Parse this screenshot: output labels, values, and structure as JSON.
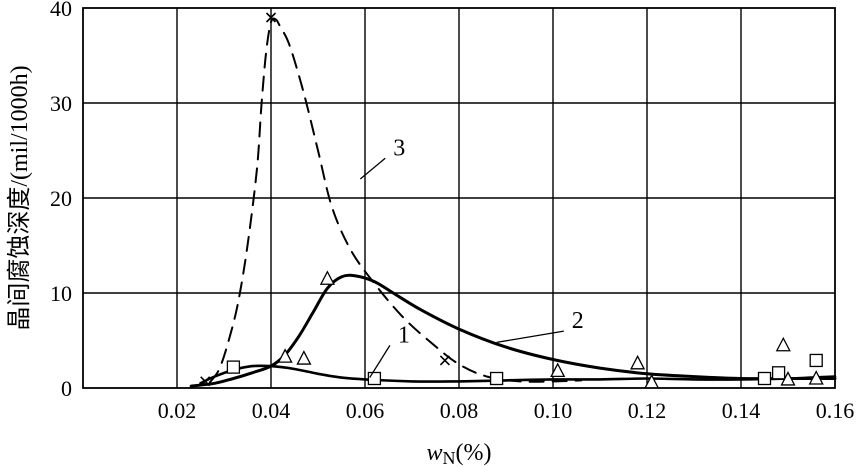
{
  "chart_data": {
    "type": "line",
    "title": "",
    "xlabel_var": "w",
    "xlabel_sub": "N",
    "xlabel_unit": "(%)",
    "ylabel": "晶间腐蚀深度/(mil/1000h)",
    "xlim": [
      0,
      0.16
    ],
    "ylim": [
      0,
      40
    ],
    "grid": true,
    "x_ticks": [
      0.02,
      0.04,
      0.06,
      0.08,
      0.1,
      0.12,
      0.14,
      0.16
    ],
    "x_tick_labels": [
      "0.02",
      "0.04",
      "0.06",
      "0.08",
      "0.10",
      "0.12",
      "0.14",
      "0.16"
    ],
    "y_ticks": [
      0,
      10,
      20,
      30,
      40
    ],
    "y_tick_labels": [
      "0",
      "10",
      "20",
      "30",
      "40"
    ],
    "series": [
      {
        "name": "1",
        "style": "solid",
        "stroke_color": "#000000",
        "marker": "square",
        "curve": [
          [
            0.025,
            0.5
          ],
          [
            0.028,
            1.2
          ],
          [
            0.032,
            1.9
          ],
          [
            0.036,
            2.3
          ],
          [
            0.04,
            2.3
          ],
          [
            0.045,
            2.0
          ],
          [
            0.05,
            1.5
          ],
          [
            0.055,
            1.1
          ],
          [
            0.06,
            0.9
          ],
          [
            0.07,
            0.7
          ],
          [
            0.08,
            0.7
          ],
          [
            0.09,
            0.8
          ],
          [
            0.1,
            0.9
          ],
          [
            0.11,
            0.9
          ],
          [
            0.12,
            1.0
          ],
          [
            0.13,
            0.9
          ],
          [
            0.14,
            0.9
          ],
          [
            0.15,
            1.0
          ],
          [
            0.155,
            1.1
          ],
          [
            0.16,
            1.2
          ]
        ],
        "points": [
          [
            0.032,
            2.2
          ],
          [
            0.062,
            1.0
          ],
          [
            0.088,
            1.0
          ],
          [
            0.145,
            1.0
          ],
          [
            0.148,
            1.6
          ],
          [
            0.156,
            2.9
          ]
        ]
      },
      {
        "name": "2",
        "style": "solid-thick",
        "stroke_color": "#000000",
        "marker": "triangle",
        "curve": [
          [
            0.023,
            0.2
          ],
          [
            0.028,
            0.5
          ],
          [
            0.032,
            1.0
          ],
          [
            0.036,
            1.6
          ],
          [
            0.04,
            2.3
          ],
          [
            0.043,
            3.5
          ],
          [
            0.046,
            5.5
          ],
          [
            0.049,
            8.0
          ],
          [
            0.052,
            10.5
          ],
          [
            0.055,
            11.7
          ],
          [
            0.058,
            11.8
          ],
          [
            0.062,
            11.2
          ],
          [
            0.066,
            10.0
          ],
          [
            0.072,
            8.2
          ],
          [
            0.08,
            6.2
          ],
          [
            0.09,
            4.3
          ],
          [
            0.1,
            3.0
          ],
          [
            0.11,
            2.1
          ],
          [
            0.12,
            1.5
          ],
          [
            0.13,
            1.2
          ],
          [
            0.14,
            1.0
          ],
          [
            0.15,
            1.0
          ],
          [
            0.16,
            1.0
          ]
        ],
        "points": [
          [
            0.043,
            3.3
          ],
          [
            0.047,
            3.1
          ],
          [
            0.052,
            11.5
          ],
          [
            0.101,
            1.8
          ],
          [
            0.118,
            2.6
          ],
          [
            0.121,
            0.6
          ],
          [
            0.149,
            4.5
          ],
          [
            0.15,
            0.9
          ],
          [
            0.156,
            1.0
          ]
        ]
      },
      {
        "name": "3",
        "style": "dashed",
        "stroke_color": "#000000",
        "marker": "cross",
        "curve": [
          [
            0.027,
            0.6
          ],
          [
            0.029,
            2.0
          ],
          [
            0.031,
            5.0
          ],
          [
            0.033,
            9.0
          ],
          [
            0.035,
            15.0
          ],
          [
            0.037,
            23.0
          ],
          [
            0.038,
            30.0
          ],
          [
            0.039,
            35.5
          ],
          [
            0.04,
            38.5
          ],
          [
            0.041,
            38.8
          ],
          [
            0.042,
            38.0
          ],
          [
            0.044,
            36.0
          ],
          [
            0.047,
            31.0
          ],
          [
            0.05,
            25.0
          ],
          [
            0.053,
            19.0
          ],
          [
            0.057,
            14.5
          ],
          [
            0.062,
            11.0
          ],
          [
            0.068,
            7.5
          ],
          [
            0.074,
            4.8
          ],
          [
            0.08,
            2.5
          ],
          [
            0.086,
            1.2
          ],
          [
            0.093,
            0.7
          ],
          [
            0.1,
            0.7
          ],
          [
            0.106,
            0.8
          ]
        ],
        "points": [
          [
            0.026,
            0.7
          ],
          [
            0.04,
            39.0
          ],
          [
            0.077,
            2.9
          ]
        ]
      }
    ],
    "annotations": [
      {
        "text": "1",
        "series": "1",
        "label_at": [
          0.067,
          4.8
        ],
        "leader_to": [
          0.061,
          1.1
        ]
      },
      {
        "text": "2",
        "series": "2",
        "label_at": [
          0.104,
          6.3
        ],
        "leader_to": [
          0.088,
          4.8
        ]
      },
      {
        "text": "3",
        "series": "3",
        "label_at": [
          0.066,
          24.5
        ],
        "leader_to": [
          0.059,
          22.0
        ]
      }
    ]
  }
}
